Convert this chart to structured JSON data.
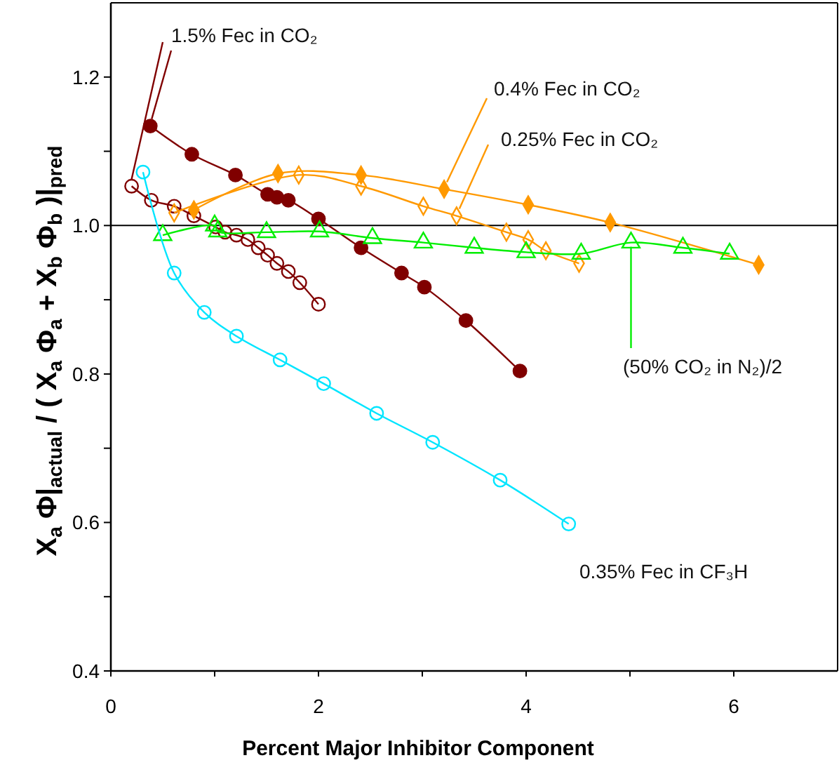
{
  "chart_data": {
    "type": "line",
    "xlabel": "Percent Major Inhibitor Component",
    "ylabel": "X$_{a}$ Φ|$_{actual}$ / ( X$_{a}$ Φ$_{a}$ + X$_{b}$ Φ$_{b}$ )|$_{pred}$",
    "xlim": [
      0,
      7
    ],
    "xticks": [
      0,
      {
        "value": 1,
        "label": null
      },
      2,
      {
        "value": 3,
        "label": null
      },
      4,
      {
        "value": 5,
        "label": null
      },
      6
    ],
    "ylim": [
      0.4,
      1.3
    ],
    "yticks": [
      0.4,
      {
        "value": 0.5,
        "label": null
      },
      0.6,
      {
        "value": 0.7,
        "label": null
      },
      0.8,
      {
        "value": 0.9,
        "label": null
      },
      {
        "value": 1.0,
        "label": "1.0"
      },
      {
        "value": 1.1,
        "label": null
      },
      1.2
    ],
    "grid": false,
    "line_style": "solid",
    "ref_lines": [
      {
        "axis": "y",
        "value": 1.0,
        "color": "#000000"
      }
    ],
    "series": [
      {
        "name": "1.5% Fec in CO₂",
        "color": "#800000",
        "marker": "circle",
        "x": [
          0.38,
          0.78,
          1.2,
          1.51,
          1.6,
          1.71,
          2.0,
          2.41,
          2.8,
          3.02,
          3.42,
          3.94
        ],
        "values": [
          1.134,
          1.096,
          1.068,
          1.042,
          1.038,
          1.034,
          1.009,
          0.97,
          0.936,
          0.917,
          0.872,
          0.804
        ]
      },
      {
        "color": "#800000",
        "marker": "circle-open",
        "x": [
          0.2,
          0.39,
          0.61,
          0.8,
          1.01,
          1.1,
          1.21,
          1.32,
          1.42,
          1.51,
          1.6,
          1.71,
          1.82,
          2.0
        ],
        "values": [
          1.053,
          1.034,
          1.026,
          1.013,
          0.998,
          0.991,
          0.987,
          0.981,
          0.97,
          0.96,
          0.949,
          0.938,
          0.923,
          0.894
        ]
      },
      {
        "name": "0.4% Fec in CO₂",
        "color": "#ff9900",
        "marker": "diamond",
        "x": [
          0.8,
          1.61,
          2.41,
          3.21,
          4.02,
          4.81,
          6.24
        ],
        "values": [
          1.021,
          1.07,
          1.068,
          1.049,
          1.028,
          1.004,
          0.947
        ]
      },
      {
        "name": "0.25% Fec in CO₂",
        "color": "#ff9900",
        "marker": "diamond-open",
        "x": [
          0.61,
          1.81,
          2.41,
          3.01,
          3.33,
          3.81,
          4.02,
          4.19,
          4.51
        ],
        "values": [
          1.017,
          1.068,
          1.053,
          1.026,
          1.013,
          0.991,
          0.981,
          0.966,
          0.949
        ]
      },
      {
        "name": "(50% CO₂ in N₂)/2",
        "color": "#00ee00",
        "marker": "triangle-open",
        "x": [
          0.5,
          1.0,
          1.03,
          1.5,
          2.01,
          2.52,
          3.01,
          3.5,
          4.0,
          4.53,
          5.01,
          5.51,
          5.96
        ],
        "values": [
          0.987,
          1.0,
          0.992,
          0.991,
          0.992,
          0.983,
          0.977,
          0.97,
          0.964,
          0.962,
          0.977,
          0.97,
          0.962
        ]
      },
      {
        "name": "0.35% Fec in CF₃H",
        "color": "#00e5ff",
        "marker": "circle-open",
        "x": [
          0.31,
          0.61,
          0.9,
          1.21,
          1.63,
          2.05,
          2.56,
          3.1,
          3.75,
          4.41
        ],
        "values": [
          1.072,
          0.936,
          0.883,
          0.851,
          0.819,
          0.787,
          0.747,
          0.708,
          0.657,
          0.598
        ]
      }
    ]
  }
}
